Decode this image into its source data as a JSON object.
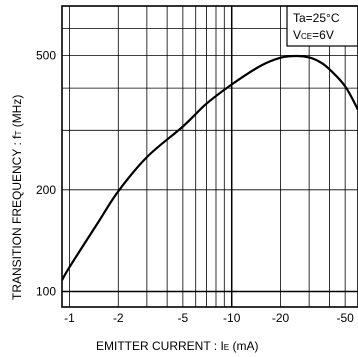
{
  "chart_data": {
    "type": "line",
    "title": "",
    "xlabel": "EMITTER CURRENT : I",
    "xlabel_sub": "E",
    "xlabel_unit": " (mA)",
    "ylabel": "TRANSITION FREQUENCY : f",
    "ylabel_sub": "T",
    "ylabel_unit": " (MHz)",
    "x_scale": "log",
    "y_scale": "log",
    "xlim": [
      -0.9,
      -60
    ],
    "ylim": [
      90,
      700
    ],
    "x_ticks": [
      {
        "value": -1,
        "label": "-1"
      },
      {
        "value": -2,
        "label": "-2"
      },
      {
        "value": -5,
        "label": "-5"
      },
      {
        "value": -10,
        "label": "-10"
      },
      {
        "value": -20,
        "label": "-20"
      },
      {
        "value": -50,
        "label": "-50"
      }
    ],
    "y_ticks": [
      {
        "value": 100,
        "label": "100"
      },
      {
        "value": 200,
        "label": "200"
      },
      {
        "value": 500,
        "label": "500"
      }
    ],
    "grid": true,
    "legend": {
      "placement": "top-right",
      "line1": "Ta=25°C",
      "line2_main": "V",
      "line2_sub": "CE",
      "line2_rest": "=6V"
    },
    "series": [
      {
        "x": [
          -0.9,
          -1,
          -1.5,
          -2,
          -3,
          -5,
          -7,
          -10,
          -15,
          -20,
          -25,
          -30,
          -35,
          -40,
          -50,
          -60
        ],
        "y": [
          108,
          118,
          160,
          198,
          250,
          308,
          360,
          410,
          465,
          492,
          498,
          493,
          478,
          455,
          405,
          345
        ]
      }
    ]
  }
}
